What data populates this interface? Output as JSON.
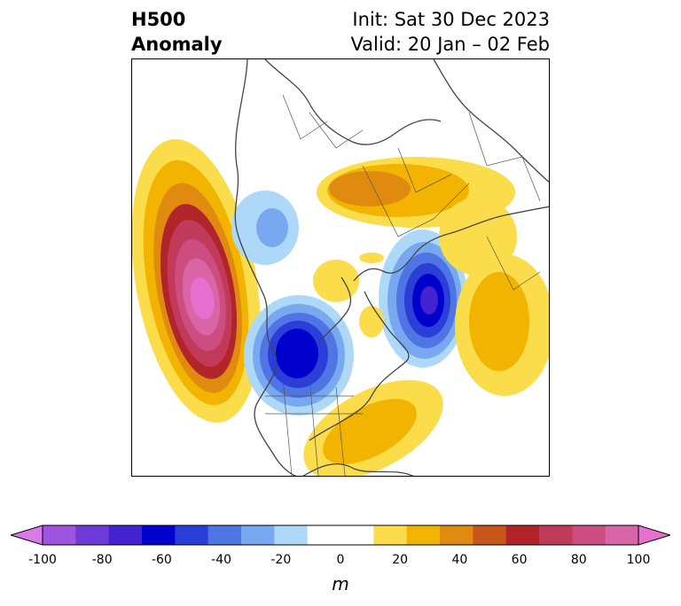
{
  "header": {
    "title_line1": "H500",
    "title_line2": "Anomaly",
    "init": "Init: Sat 30 Dec 2023",
    "valid": "Valid: 20 Jan – 02 Feb"
  },
  "map": {
    "projection": "north-polar-stereographic",
    "field": "500 hPa geopotential height anomaly",
    "features": [
      {
        "name": "ridge-northeast-pacific",
        "sign": "positive",
        "peak_m": 95
      },
      {
        "name": "trough-western-canada",
        "sign": "negative",
        "peak_m": -65
      },
      {
        "name": "trough-north-atlantic",
        "sign": "negative",
        "peak_m": -65
      },
      {
        "name": "ridge-eurasia",
        "sign": "positive",
        "peak_m": 35
      },
      {
        "name": "ridge-east-asia",
        "sign": "positive",
        "peak_m": 30
      },
      {
        "name": "ridge-eastern-us",
        "sign": "positive",
        "peak_m": 30
      },
      {
        "name": "trough-siberia",
        "sign": "negative",
        "peak_m": -20
      }
    ]
  },
  "colorbar": {
    "unit": "m",
    "min": -100,
    "max": 100,
    "step": 10,
    "extend": "both",
    "ticks": [
      "-100",
      "-80",
      "-60",
      "-40",
      "-20",
      "0",
      "20",
      "40",
      "60",
      "80",
      "100"
    ],
    "colors": [
      "#d87ae8",
      "#9f54e0",
      "#6c3bd8",
      "#4422d0",
      "#0000cc",
      "#2a3fd8",
      "#4f74e4",
      "#78a8ef",
      "#aed8f8",
      "#ffffff",
      "#ffffff",
      "#fbdc4a",
      "#f2b400",
      "#e08b10",
      "#c8561a",
      "#b0242a",
      "#c23a5a",
      "#cc4d80",
      "#d964a6",
      "#e66fd0"
    ]
  }
}
